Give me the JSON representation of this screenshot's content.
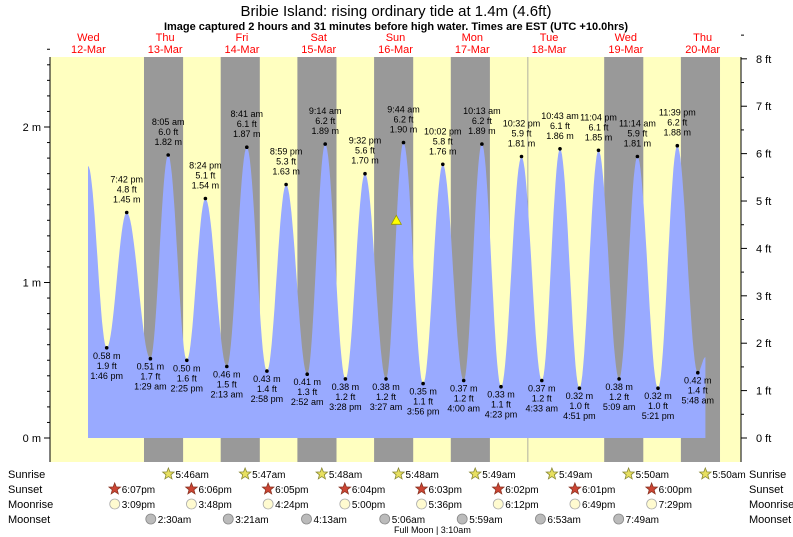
{
  "header": {
    "title": "Bribie Island: rising  ordinary tide at 1.4m (4.6ft)",
    "subtitle": "Image captured 2 hours and 31 minutes before high water. Times are EST (UTC +10.0hrs)"
  },
  "colors": {
    "day_band": "#ffffc0",
    "night_band": "#999999",
    "tide_fill": "#99aaff",
    "day_label": "#ff0000",
    "axis": "#000000"
  },
  "chart_data": {
    "type": "area",
    "title": "Bribie Island: rising  ordinary tide at 1.4m (4.6ft)",
    "ylabel_left_units": "m",
    "ylabel_right_units": "ft",
    "y_ticks_m": [
      {
        "value": 0,
        "label": "0 m"
      },
      {
        "value": 1,
        "label": "1 m"
      },
      {
        "value": 2,
        "label": "2 m"
      }
    ],
    "y_ticks_ft": [
      {
        "value": 0,
        "label": "0 ft"
      },
      {
        "value": 1,
        "label": "1 ft"
      },
      {
        "value": 2,
        "label": "2 ft"
      },
      {
        "value": 3,
        "label": "3 ft"
      },
      {
        "value": 4,
        "label": "4 ft"
      },
      {
        "value": 5,
        "label": "5 ft"
      },
      {
        "value": 6,
        "label": "6 ft"
      },
      {
        "value": 7,
        "label": "7 ft"
      },
      {
        "value": 8,
        "label": "8 ft"
      }
    ],
    "x_range_days": [
      0,
      9
    ],
    "days": [
      {
        "weekday": "Wed",
        "date": "12-Mar"
      },
      {
        "weekday": "Thu",
        "date": "13-Mar"
      },
      {
        "weekday": "Fri",
        "date": "14-Mar"
      },
      {
        "weekday": "Sat",
        "date": "15-Mar"
      },
      {
        "weekday": "Sun",
        "date": "16-Mar"
      },
      {
        "weekday": "Mon",
        "date": "17-Mar"
      },
      {
        "weekday": "Tue",
        "date": "18-Mar"
      },
      {
        "weekday": "Wed",
        "date": "19-Mar"
      },
      {
        "weekday": "Thu",
        "date": "20-Mar"
      }
    ],
    "night_bands": [
      [
        0.73,
        1.24
      ],
      [
        1.73,
        2.24
      ],
      [
        2.73,
        3.24
      ],
      [
        3.73,
        4.24
      ],
      [
        4.73,
        5.24
      ],
      [
        5.73,
        5.74
      ],
      [
        6.73,
        7.24
      ],
      [
        7.73,
        8.24
      ],
      [
        8.73,
        9.0
      ]
    ],
    "series_start": {
      "t": 0.0,
      "h": 1.75
    },
    "series_end": {
      "t": 8.05,
      "h": 0.52
    },
    "tides": [
      {
        "type": "low",
        "t": 0.244,
        "h": 0.58,
        "m": "0.58 m",
        "ft": "1.9 ft",
        "time": "1:46 pm"
      },
      {
        "type": "high",
        "t": 0.505,
        "h": 1.45,
        "m": "1.45 m",
        "ft": "4.8 ft",
        "time": "7:42 pm"
      },
      {
        "type": "low",
        "t": 0.813,
        "h": 0.51,
        "m": "0.51 m",
        "ft": "1.7 ft",
        "time": "1:29 am"
      },
      {
        "type": "high",
        "t": 1.045,
        "h": 1.82,
        "m": "1.82 m",
        "ft": "6.0 ft",
        "time": "8:05 am"
      },
      {
        "type": "low",
        "t": 1.288,
        "h": 0.5,
        "m": "0.50 m",
        "ft": "1.6 ft",
        "time": "2:25 pm"
      },
      {
        "type": "high",
        "t": 1.53,
        "h": 1.54,
        "m": "1.54 m",
        "ft": "5.1 ft",
        "time": "8:24 pm"
      },
      {
        "type": "low",
        "t": 1.809,
        "h": 0.46,
        "m": "0.46 m",
        "ft": "1.5 ft",
        "time": "2:13 am"
      },
      {
        "type": "high",
        "t": 2.07,
        "h": 1.87,
        "m": "1.87 m",
        "ft": "6.1 ft",
        "time": "8:41 am"
      },
      {
        "type": "low",
        "t": 2.332,
        "h": 0.43,
        "m": "0.43 m",
        "ft": "1.4 ft",
        "time": "2:58 pm"
      },
      {
        "type": "high",
        "t": 2.583,
        "h": 1.63,
        "m": "1.63 m",
        "ft": "5.3 ft",
        "time": "8:59 pm"
      },
      {
        "type": "low",
        "t": 2.858,
        "h": 0.41,
        "m": "0.41 m",
        "ft": "1.3 ft",
        "time": "2:52 am"
      },
      {
        "type": "high",
        "t": 3.092,
        "h": 1.89,
        "m": "1.89 m",
        "ft": "6.2 ft",
        "time": "9:14 am"
      },
      {
        "type": "low",
        "t": 3.356,
        "h": 0.38,
        "m": "0.38 m",
        "ft": "1.2 ft",
        "time": "3:28 pm"
      },
      {
        "type": "high",
        "t": 3.611,
        "h": 1.7,
        "m": "1.70 m",
        "ft": "5.6 ft",
        "time": "9:32 pm"
      },
      {
        "type": "low",
        "t": 3.885,
        "h": 0.38,
        "m": "0.38 m",
        "ft": "1.2 ft",
        "time": "3:27 am"
      },
      {
        "type": "high",
        "t": 4.113,
        "h": 1.9,
        "m": "1.90 m",
        "ft": "6.2 ft",
        "time": "9:44 am"
      },
      {
        "type": "low",
        "t": 4.369,
        "h": 0.35,
        "m": "0.35 m",
        "ft": "1.1 ft",
        "time": "3:56 pm"
      },
      {
        "type": "high",
        "t": 4.626,
        "h": 1.76,
        "m": "1.76 m",
        "ft": "5.8 ft",
        "time": "10:02 pm"
      },
      {
        "type": "low",
        "t": 4.898,
        "h": 0.37,
        "m": "0.37 m",
        "ft": "1.2 ft",
        "time": "4:00 am"
      },
      {
        "type": "high",
        "t": 5.135,
        "h": 1.89,
        "m": "1.89 m",
        "ft": "6.2 ft",
        "time": "10:13 am"
      },
      {
        "type": "low",
        "t": 5.385,
        "h": 0.33,
        "m": "0.33 m",
        "ft": "1.1 ft",
        "time": "4:23 pm"
      },
      {
        "type": "high",
        "t": 5.652,
        "h": 1.81,
        "m": "1.81 m",
        "ft": "5.9 ft",
        "time": "10:32 pm"
      },
      {
        "type": "low",
        "t": 5.917,
        "h": 0.37,
        "m": "0.37 m",
        "ft": "1.2 ft",
        "time": "4:33 am"
      },
      {
        "type": "high",
        "t": 6.154,
        "h": 1.86,
        "m": "1.86 m",
        "ft": "6.1 ft",
        "time": "10:43 am"
      },
      {
        "type": "low",
        "t": 6.407,
        "h": 0.32,
        "m": "0.32 m",
        "ft": "1.0 ft",
        "time": "4:51 pm"
      },
      {
        "type": "high",
        "t": 6.656,
        "h": 1.85,
        "m": "1.85 m",
        "ft": "6.1 ft",
        "time": "11:04 pm"
      },
      {
        "type": "low",
        "t": 6.924,
        "h": 0.38,
        "m": "0.38 m",
        "ft": "1.2 ft",
        "time": "5:09 am"
      },
      {
        "type": "high",
        "t": 7.163,
        "h": 1.81,
        "m": "1.81 m",
        "ft": "5.9 ft",
        "time": "11:14 am"
      },
      {
        "type": "low",
        "t": 7.431,
        "h": 0.32,
        "m": "0.32 m",
        "ft": "1.0 ft",
        "time": "5:21 pm"
      },
      {
        "type": "high",
        "t": 7.683,
        "h": 1.88,
        "m": "1.88 m",
        "ft": "6.2 ft",
        "time": "11:39 pm"
      },
      {
        "type": "low",
        "t": 7.95,
        "h": 0.42,
        "m": "0.42 m",
        "ft": "1.4 ft",
        "time": "5:48 am"
      }
    ],
    "current": {
      "t": 4.02,
      "h": 1.4
    }
  },
  "astro": {
    "labels": {
      "sunrise": "Sunrise",
      "sunset": "Sunset",
      "moonrise": "Moonrise",
      "moonset": "Moonset"
    },
    "sunrise": [
      {
        "t": 1.14,
        "time": "5:46am"
      },
      {
        "t": 2.14,
        "time": "5:47am"
      },
      {
        "t": 3.14,
        "time": "5:48am"
      },
      {
        "t": 4.14,
        "time": "5:48am"
      },
      {
        "t": 5.14,
        "time": "5:49am"
      },
      {
        "t": 6.14,
        "time": "5:49am"
      },
      {
        "t": 7.14,
        "time": "5:50am"
      },
      {
        "t": 8.14,
        "time": "5:50am"
      }
    ],
    "sunset": [
      {
        "t": 0.44,
        "time": "6:07pm"
      },
      {
        "t": 1.44,
        "time": "6:06pm"
      },
      {
        "t": 2.44,
        "time": "6:05pm"
      },
      {
        "t": 3.44,
        "time": "6:04pm"
      },
      {
        "t": 4.44,
        "time": "6:03pm"
      },
      {
        "t": 5.44,
        "time": "6:02pm"
      },
      {
        "t": 6.44,
        "time": "6:01pm"
      },
      {
        "t": 7.44,
        "time": "6:00pm"
      }
    ],
    "moonrise": [
      {
        "t": 0.44,
        "time": "3:09pm"
      },
      {
        "t": 1.44,
        "time": "3:48pm"
      },
      {
        "t": 2.44,
        "time": "4:24pm"
      },
      {
        "t": 3.44,
        "time": "5:00pm"
      },
      {
        "t": 4.44,
        "time": "5:36pm"
      },
      {
        "t": 5.44,
        "time": "6:12pm"
      },
      {
        "t": 6.44,
        "time": "6:49pm"
      },
      {
        "t": 7.44,
        "time": "7:29pm"
      }
    ],
    "moonset": [
      {
        "t": 0.91,
        "time": "2:30am"
      },
      {
        "t": 1.92,
        "time": "3:21am"
      },
      {
        "t": 2.94,
        "time": "4:13am"
      },
      {
        "t": 3.96,
        "time": "5:06am"
      },
      {
        "t": 4.97,
        "time": "5:59am"
      },
      {
        "t": 5.99,
        "time": "6:53am"
      },
      {
        "t": 7.01,
        "time": "7:49am"
      }
    ],
    "full_moon": {
      "t": 4.49,
      "text": "Full Moon | 3:10am"
    }
  }
}
